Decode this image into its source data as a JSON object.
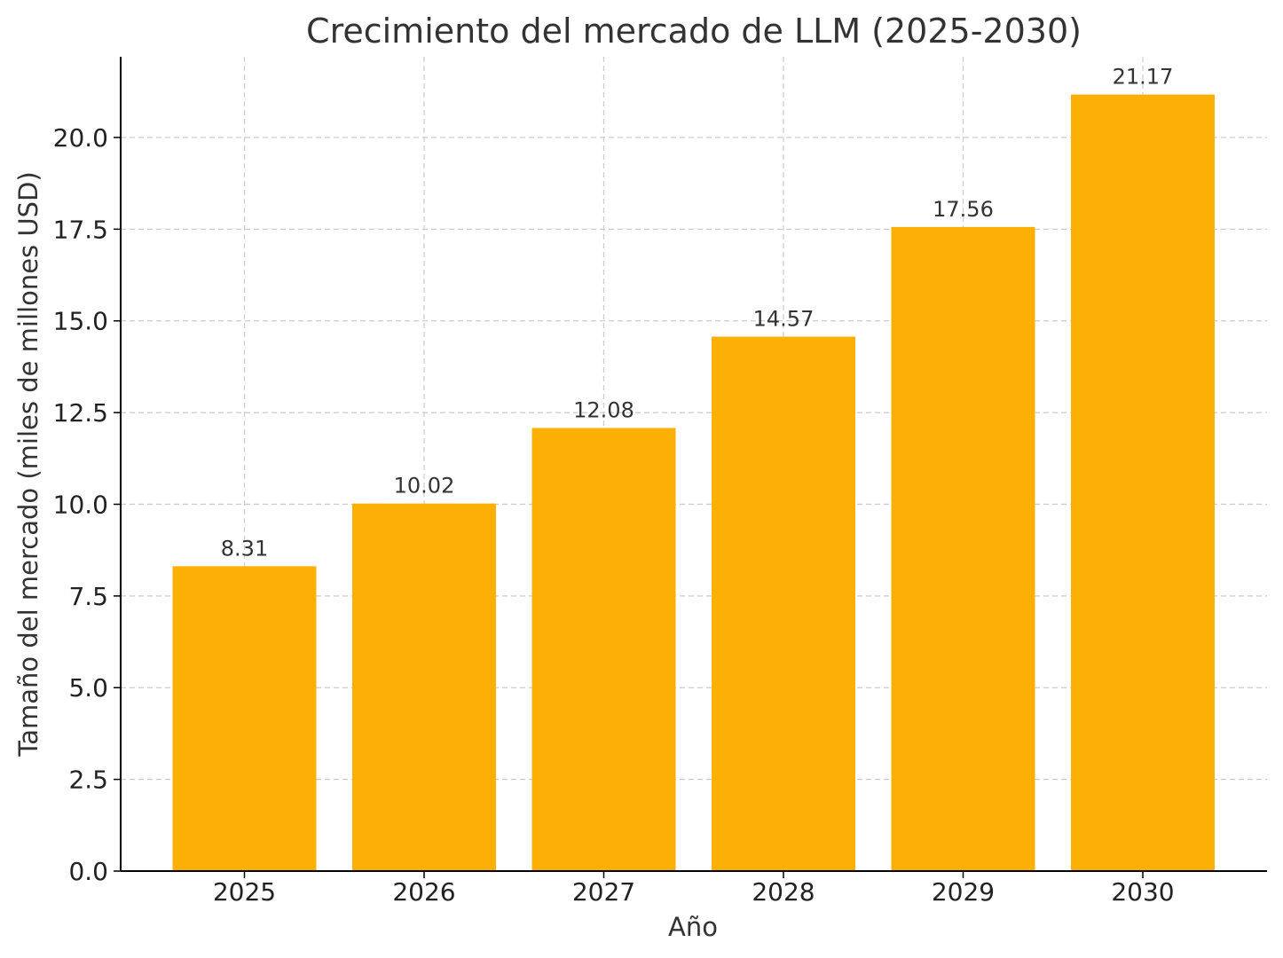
{
  "chart_data": {
    "type": "bar",
    "title": "Crecimiento del mercado de LLM (2025-2030)",
    "xlabel": "Año",
    "ylabel": "Tamaño del mercado (miles de millones USD)",
    "categories": [
      "2025",
      "2026",
      "2027",
      "2028",
      "2029",
      "2030"
    ],
    "values": [
      8.31,
      10.02,
      12.08,
      14.57,
      17.56,
      21.17
    ],
    "data_labels": [
      "8.31",
      "10.02",
      "12.08",
      "14.57",
      "17.56",
      "21.17"
    ],
    "ylim": [
      0,
      22.2
    ],
    "yticks": [
      0.0,
      2.5,
      5.0,
      7.5,
      10.0,
      12.5,
      15.0,
      17.5,
      20.0
    ],
    "ytick_labels": [
      "0.0",
      "2.5",
      "5.0",
      "7.5",
      "10.0",
      "12.5",
      "15.0",
      "17.5",
      "20.0"
    ],
    "grid": true,
    "bar_color": "#FCAF04"
  }
}
